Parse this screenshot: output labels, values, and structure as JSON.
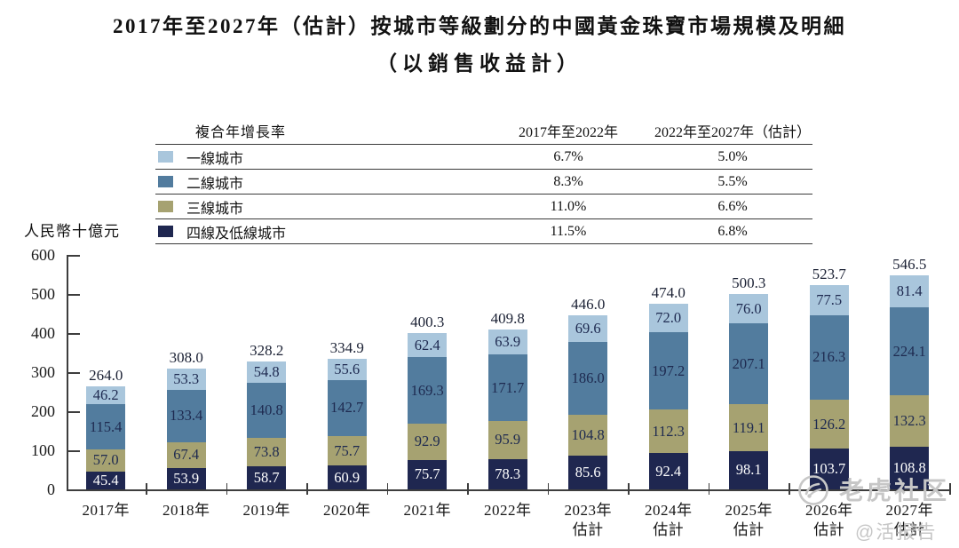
{
  "title": {
    "line1": "2017年至2027年（估計）按城市等級劃分的中國黃金珠寶市場規模及明細",
    "line2": "（以銷售收益計）"
  },
  "legend": {
    "header": {
      "col1": "複合年增長率",
      "col2": "2017年至2022年",
      "col3": "2022年至2027年（估計）"
    },
    "rows": [
      {
        "label": "一線城市",
        "color": "#a9c6dc",
        "cagr_2017_2022": "6.7%",
        "cagr_2022_2027": "5.0%"
      },
      {
        "label": "二線城市",
        "color": "#527c9e",
        "cagr_2017_2022": "8.3%",
        "cagr_2022_2027": "5.5%"
      },
      {
        "label": "三線城市",
        "color": "#a6a271",
        "cagr_2017_2022": "11.0%",
        "cagr_2022_2027": "6.6%"
      },
      {
        "label": "四線及低線城市",
        "color": "#1f2750",
        "cagr_2017_2022": "11.5%",
        "cagr_2022_2027": "6.8%"
      }
    ]
  },
  "chart_data": {
    "type": "bar",
    "stacked": true,
    "title": "2017年至2027年（估計）按城市等級劃分的中國黃金珠寶市場規模及明細（以銷售收益計）",
    "unit_label": "人民幣十億元",
    "ylabel": "人民幣十億元",
    "xlabel": "",
    "ylim": [
      0,
      600
    ],
    "yticks": [
      0,
      100,
      200,
      300,
      400,
      500,
      600
    ],
    "grid": false,
    "legend_position": "top-table",
    "categories": [
      "2017年",
      "2018年",
      "2019年",
      "2020年",
      "2021年",
      "2022年",
      "2023年",
      "2024年",
      "2025年",
      "2026年",
      "2027年"
    ],
    "category_sublabels": [
      "",
      "",
      "",
      "",
      "",
      "",
      "估計",
      "估計",
      "估計",
      "估計",
      "估計"
    ],
    "series": [
      {
        "name": "一線城市",
        "color": "#a9c6dc",
        "label_color": "#1e2a50",
        "values": [
          46.2,
          53.3,
          54.8,
          55.6,
          62.4,
          63.9,
          69.6,
          72.0,
          76.0,
          77.5,
          81.4
        ]
      },
      {
        "name": "二線城市",
        "color": "#527c9e",
        "label_color": "#1e2a50",
        "values": [
          115.4,
          133.4,
          140.8,
          142.7,
          169.3,
          171.7,
          186.0,
          197.2,
          207.1,
          216.3,
          224.1
        ]
      },
      {
        "name": "三線城市",
        "color": "#a6a271",
        "label_color": "#1e2a50",
        "values": [
          57.0,
          67.4,
          73.8,
          75.7,
          92.9,
          95.9,
          104.8,
          112.3,
          119.1,
          126.2,
          132.3
        ]
      },
      {
        "name": "四線及低線城市",
        "color": "#1f2750",
        "label_color": "#ffffff",
        "values": [
          45.4,
          53.9,
          58.7,
          60.9,
          75.7,
          78.3,
          85.6,
          92.4,
          98.1,
          103.7,
          108.8
        ]
      }
    ],
    "totals": [
      264.0,
      308.0,
      328.2,
      334.9,
      400.3,
      409.8,
      446.0,
      474.0,
      500.3,
      523.7,
      546.5
    ]
  },
  "watermark": {
    "brand": "老虎社区",
    "handle": "@活报告"
  }
}
